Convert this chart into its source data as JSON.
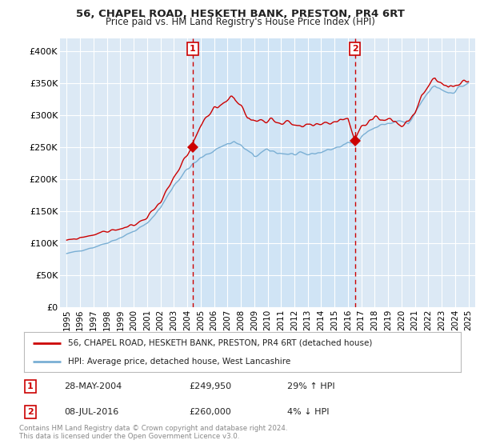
{
  "title": "56, CHAPEL ROAD, HESKETH BANK, PRESTON, PR4 6RT",
  "subtitle": "Price paid vs. HM Land Registry's House Price Index (HPI)",
  "background_color": "#dce9f5",
  "plot_bg_color": "#dce9f5",
  "red_label": "56, CHAPEL ROAD, HESKETH BANK, PRESTON, PR4 6RT (detached house)",
  "blue_label": "HPI: Average price, detached house, West Lancashire",
  "sale1_date": "28-MAY-2004",
  "sale1_price": 249950,
  "sale1_hpi": "29% ↑ HPI",
  "sale2_date": "08-JUL-2016",
  "sale2_price": 260000,
  "sale2_hpi": "4% ↓ HPI",
  "footer": "Contains HM Land Registry data © Crown copyright and database right 2024.\nThis data is licensed under the Open Government Licence v3.0.",
  "ylim": [
    0,
    420000
  ],
  "yticks": [
    0,
    50000,
    100000,
    150000,
    200000,
    250000,
    300000,
    350000,
    400000
  ],
  "ytick_labels": [
    "£0",
    "£50K",
    "£100K",
    "£150K",
    "£200K",
    "£250K",
    "£300K",
    "£350K",
    "£400K"
  ],
  "sale1_x": 2004.41,
  "sale2_x": 2016.52,
  "red_color": "#cc0000",
  "blue_color": "#7aafd4",
  "shade_color": "#d0e4f5",
  "vline_color": "#cc0000",
  "marker_box_color": "#cc0000",
  "xstart": 1995,
  "xend": 2025
}
